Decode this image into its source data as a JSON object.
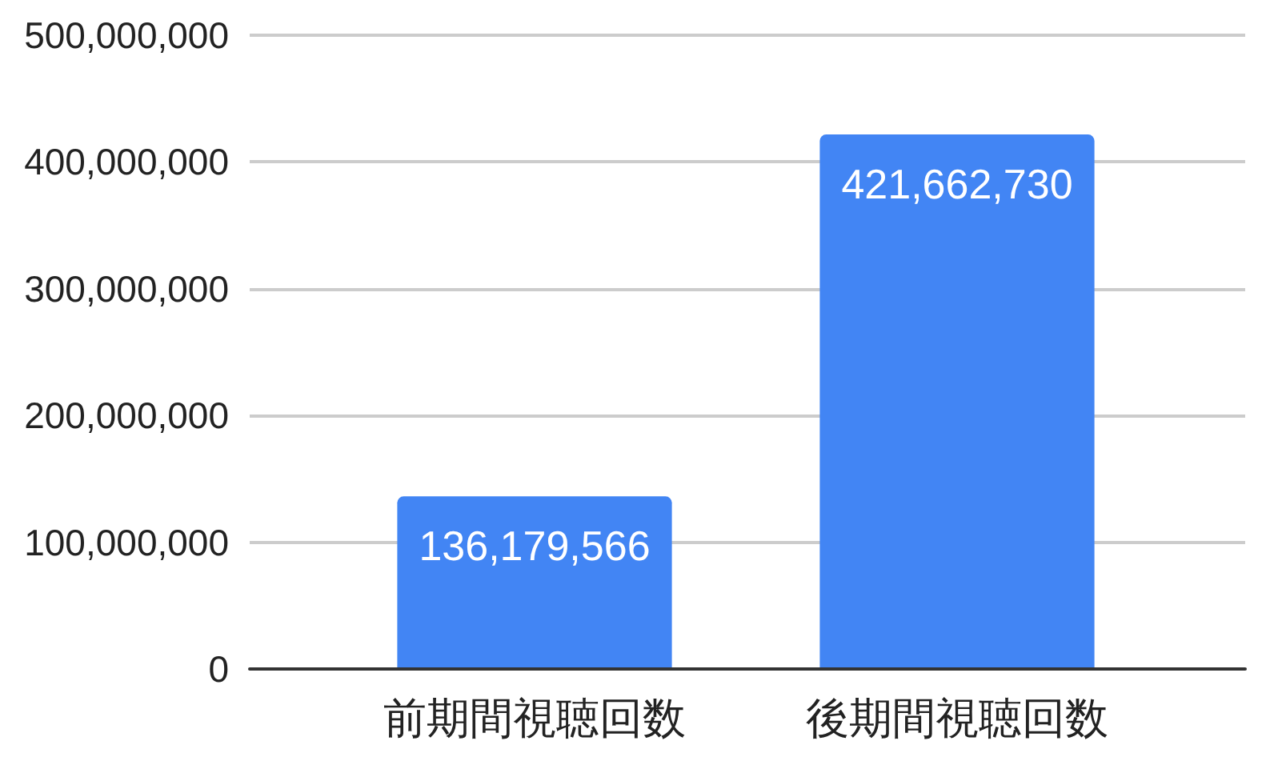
{
  "chart_data": {
    "type": "bar",
    "categories": [
      "前期間視聴回数",
      "後期間視聴回数"
    ],
    "values": [
      136179566,
      421662730
    ],
    "value_labels": [
      "136,179,566",
      "421,662,730"
    ],
    "color": "#4285f4",
    "ylim": [
      0,
      500000000
    ],
    "yticks": [
      {
        "value": 0,
        "label": "0"
      },
      {
        "value": 100000000,
        "label": "100,000,000"
      },
      {
        "value": 200000000,
        "label": "200,000,000"
      },
      {
        "value": 300000000,
        "label": "300,000,000"
      },
      {
        "value": 400000000,
        "label": "400,000,000"
      },
      {
        "value": 500000000,
        "label": "500,000,000"
      }
    ],
    "grid": "y"
  }
}
